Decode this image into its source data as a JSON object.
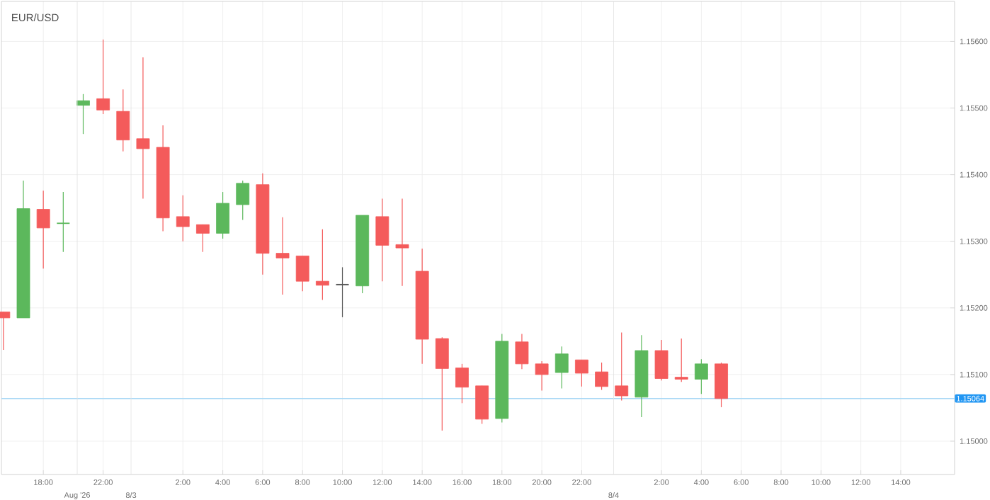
{
  "chart_data": {
    "type": "candlestick",
    "title": "EUR/USD",
    "categories": [
      null,
      null,
      "18:00",
      null,
      null,
      "22:00",
      null,
      null,
      null,
      "2:00",
      null,
      "4:00",
      null,
      "6:00",
      null,
      "8:00",
      null,
      "10:00",
      null,
      "12:00",
      null,
      "14:00",
      null,
      "16:00",
      null,
      "18:00",
      null,
      "20:00",
      null,
      "22:00",
      null,
      null,
      null,
      "2:00",
      null,
      "4:00",
      null,
      "6:00",
      null,
      "8:00",
      null,
      "10:00",
      null,
      "12:00",
      null,
      "14:00",
      null,
      null
    ],
    "annotations": [
      "Aug '26",
      "8/3",
      "8/4"
    ],
    "ohlc": [
      [
        1.15194,
        1.15194,
        1.15137,
        1.15185
      ],
      [
        1.15185,
        1.15391,
        1.15185,
        1.15349
      ],
      [
        1.15348,
        1.15376,
        1.15259,
        1.1532
      ],
      [
        1.15327,
        1.15374,
        1.15284,
        1.15327
      ],
      [
        1.15504,
        1.15521,
        1.15461,
        1.15511
      ],
      [
        1.15514,
        1.15603,
        1.15491,
        1.15497
      ],
      [
        1.15495,
        1.15528,
        1.15435,
        1.15452
      ],
      [
        1.15454,
        1.15576,
        1.15364,
        1.15439
      ],
      [
        1.15441,
        1.15474,
        1.15315,
        1.15335
      ],
      [
        1.15337,
        1.15369,
        1.153,
        1.15322
      ],
      [
        1.15325,
        1.15325,
        1.15284,
        1.15312
      ],
      [
        1.15312,
        1.15374,
        1.15304,
        1.15357
      ],
      [
        1.15355,
        1.15391,
        1.15332,
        1.15387
      ],
      [
        1.15385,
        1.15402,
        1.1525,
        1.15282
      ],
      [
        1.15282,
        1.15336,
        1.1522,
        1.15275
      ],
      [
        1.15278,
        1.15278,
        1.15225,
        1.1524
      ],
      [
        1.1524,
        1.15318,
        1.15212,
        1.15234
      ],
      [
        1.15235,
        1.15261,
        1.15186,
        1.15235
      ],
      [
        1.15233,
        1.15339,
        1.15222,
        1.15339
      ],
      [
        1.15337,
        1.15364,
        1.1524,
        1.15294
      ],
      [
        1.15295,
        1.15364,
        1.15233,
        1.1529
      ],
      [
        1.15255,
        1.15289,
        1.15116,
        1.15153
      ],
      [
        1.15154,
        1.15156,
        1.15016,
        1.15109
      ],
      [
        1.1511,
        1.15116,
        1.15057,
        1.15081
      ],
      [
        1.15083,
        1.15083,
        1.15026,
        1.15033
      ],
      [
        1.15034,
        1.15161,
        1.15028,
        1.1515
      ],
      [
        1.15149,
        1.15161,
        1.15108,
        1.15116
      ],
      [
        1.15116,
        1.1512,
        1.15076,
        1.151
      ],
      [
        1.15103,
        1.15142,
        1.15079,
        1.15131
      ],
      [
        1.15122,
        1.15122,
        1.15082,
        1.15102
      ],
      [
        1.15104,
        1.15118,
        1.15077,
        1.15082
      ],
      [
        1.15083,
        1.15163,
        1.15061,
        1.15068
      ],
      [
        1.15066,
        1.15159,
        1.15036,
        1.15136
      ],
      [
        1.15136,
        1.15152,
        1.15091,
        1.15094
      ],
      [
        1.15096,
        1.15154,
        1.15089,
        1.15093
      ],
      [
        1.15093,
        1.15123,
        1.15071,
        1.15116
      ],
      [
        1.15116,
        1.15118,
        1.15051,
        1.15064
      ],
      null,
      null,
      null,
      null,
      null,
      null,
      null,
      null,
      null,
      null,
      null
    ],
    "colors": [
      "#f45b5b",
      "#5cb85c",
      "#f45b5b",
      "#5cb85c",
      "#5cb85c",
      "#f45b5b",
      "#f45b5b",
      "#f45b5b",
      "#f45b5b",
      "#f45b5b",
      "#f45b5b",
      "#5cb85c",
      "#5cb85c",
      "#f45b5b",
      "#f45b5b",
      "#f45b5b",
      "#f45b5b",
      "#555555",
      "#5cb85c",
      "#f45b5b",
      "#f45b5b",
      "#f45b5b",
      "#f45b5b",
      "#f45b5b",
      "#f45b5b",
      "#5cb85c",
      "#f45b5b",
      "#f45b5b",
      "#5cb85c",
      "#f45b5b",
      "#f45b5b",
      "#f45b5b",
      "#5cb85c",
      "#f45b5b",
      "#f45b5b",
      "#5cb85c",
      "#f45b5b",
      null,
      null,
      null,
      null,
      null,
      null,
      null,
      null,
      null,
      null,
      null
    ],
    "ylim": [
      1.1495,
      1.1566
    ],
    "yticks": [
      {
        "value": 1.15,
        "label": "1.15000"
      },
      {
        "value": 1.151,
        "label": "1.15100"
      },
      {
        "value": 1.152,
        "label": "1.15200"
      },
      {
        "value": 1.153,
        "label": "1.15300"
      },
      {
        "value": 1.154,
        "label": "1.15400"
      },
      {
        "value": 1.155,
        "label": "1.15500"
      },
      {
        "value": 1.156,
        "label": "1.15600"
      }
    ],
    "ref_lines": [
      {
        "axis": "y",
        "value": 1.15064,
        "label": "1.15064",
        "color": "#a8d8f5"
      }
    ],
    "grid": true
  }
}
